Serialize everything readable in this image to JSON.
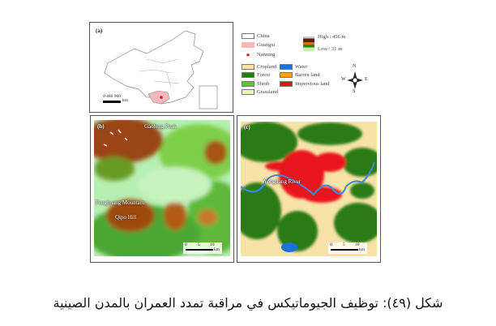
{
  "panel_a": {
    "label": "(a)",
    "scale_ticks": "0  480 960",
    "scale_unit": "km"
  },
  "legend": {
    "region": [
      {
        "label": "China",
        "color": "#ffffff"
      },
      {
        "label": "Guangxi",
        "color": "#f6b8bd"
      },
      {
        "label": "Nanning",
        "color": "#e0101a"
      }
    ],
    "elevation": {
      "high": "High : 456 m",
      "low": "Low : 31 m"
    },
    "landcover": [
      {
        "label": "Cropland",
        "color": "#f7e3a8"
      },
      {
        "label": "Forest",
        "color": "#2b7a12"
      },
      {
        "label": "Shrub",
        "color": "#4fd21f"
      },
      {
        "label": "Grassland",
        "color": "#e6f5b9"
      },
      {
        "label": "Water",
        "color": "#1f6fe0"
      },
      {
        "label": "Barren land",
        "color": "#f4a21a"
      },
      {
        "label": "Impervious land",
        "color": "#e8141a"
      }
    ],
    "compass": {
      "n": "N",
      "s": "S",
      "e": "E",
      "w": "W"
    }
  },
  "panel_b": {
    "label": "(b)",
    "places": [
      "Gaofeng Peak",
      "Fenghuang Mountain",
      "Qipo Hill"
    ],
    "scale_ticks": [
      "0",
      "5",
      "10"
    ],
    "scale_unit": "km"
  },
  "panel_c": {
    "label": "(c)",
    "places": [
      "Yongjiang River"
    ],
    "scale_ticks": [
      "0",
      "5",
      "10"
    ],
    "scale_unit": "km"
  },
  "caption": "شكل (٤٩): توظيف الجيوماتيكس في مراقبة تمدد العمران بالمدن الصينية"
}
